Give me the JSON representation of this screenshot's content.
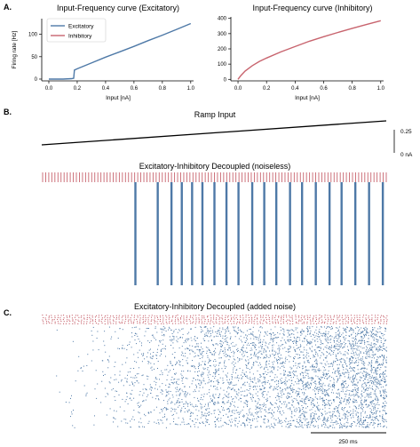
{
  "panels": {
    "a": {
      "letter": "A.",
      "chart_data": [
        {
          "type": "line",
          "title": "Input-Frequency curve (Excitatory)",
          "xlabel": "Input [nA]",
          "ylabel": "Firing rate [Hz]",
          "xlim": [
            -0.05,
            1.02
          ],
          "ylim": [
            -4,
            135
          ],
          "xticks": [
            "0.0",
            "0.2",
            "0.4",
            "0.6",
            "0.8",
            "1.0"
          ],
          "yticks": [
            "0",
            "50",
            "100"
          ],
          "xtick_values": [
            0.0,
            0.2,
            0.4,
            0.6,
            0.8,
            1.0
          ],
          "ytick_values": [
            0,
            50,
            100
          ],
          "legend": {
            "placement": "top-left",
            "entries": [
              "Excitatory",
              "Inhibitory"
            ],
            "colors": [
              "#4e79a7",
              "#c8646e"
            ]
          },
          "series": [
            {
              "name": "Excitatory",
              "color": "#4e79a7",
              "x": [
                0.0,
                0.1,
                0.16,
                0.175,
                0.18,
                0.2,
                0.3,
                0.4,
                0.5,
                0.6,
                0.7,
                0.8,
                0.9,
                1.0
              ],
              "y": [
                0,
                0,
                1,
                2,
                20,
                23,
                36,
                49,
                61,
                73,
                86,
                98,
                111,
                124
              ]
            }
          ]
        },
        {
          "type": "line",
          "title": "Input-Frequency curve (Inhibitory)",
          "xlabel": "Input [nA]",
          "ylabel": "",
          "xlim": [
            -0.05,
            1.02
          ],
          "ylim": [
            -10,
            410
          ],
          "xticks": [
            "0.0",
            "0.2",
            "0.4",
            "0.6",
            "0.8",
            "1.0"
          ],
          "yticks": [
            "0",
            "100",
            "200",
            "300",
            "400"
          ],
          "xtick_values": [
            0.0,
            0.2,
            0.4,
            0.6,
            0.8,
            1.0
          ],
          "ytick_values": [
            0,
            100,
            200,
            300,
            400
          ],
          "series": [
            {
              "name": "Inhibitory",
              "color": "#c8646e",
              "x": [
                0.0,
                0.02,
                0.05,
                0.1,
                0.15,
                0.2,
                0.3,
                0.4,
                0.5,
                0.6,
                0.7,
                0.8,
                0.9,
                1.0
              ],
              "y": [
                0,
                25,
                55,
                90,
                118,
                140,
                180,
                215,
                250,
                280,
                308,
                335,
                360,
                385
              ]
            }
          ]
        }
      ]
    },
    "b": {
      "letter": "B.",
      "ramp_title": "Ramp Input",
      "scale_top": "0.25",
      "scale_bottom": "0 nA",
      "raster_title": "Excitatory-Inhibitory Decoupled (noiseless)",
      "inhibitory_spike_count": 113,
      "excitatory_burst_fractions": [
        0.27,
        0.335,
        0.375,
        0.405,
        0.435,
        0.465,
        0.5,
        0.535,
        0.57,
        0.61,
        0.645,
        0.68,
        0.72,
        0.755,
        0.795,
        0.835,
        0.87,
        0.91,
        0.95,
        0.99
      ]
    },
    "c": {
      "letter": "C.",
      "raster_title": "Excitatory-Inhibitory Decoupled (added noise)",
      "scale_label": "250 ms"
    },
    "colors": {
      "excitatory": "#4e79a7",
      "inhibitory": "#c8646e",
      "ramp": "#000000"
    }
  }
}
